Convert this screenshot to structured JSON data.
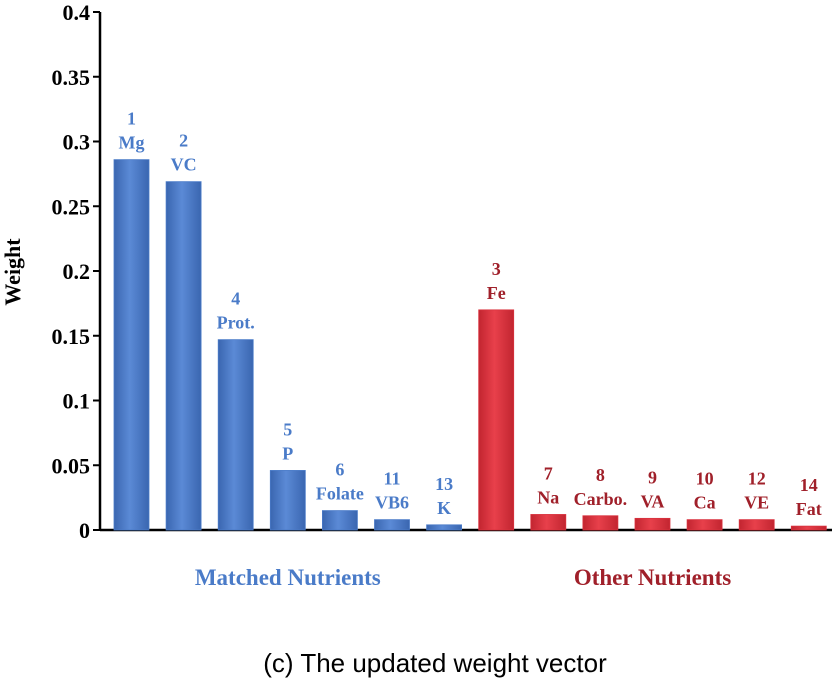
{
  "chart_data": {
    "type": "bar",
    "ylabel": "Weight",
    "ylim": [
      0,
      0.4
    ],
    "yticks": [
      "0",
      "0.05",
      "0.1",
      "0.15",
      "0.2",
      "0.25",
      "0.3",
      "0.35",
      "0.4"
    ],
    "grid": false,
    "caption": "(c) The updated weight vector",
    "groups": [
      {
        "name": "Matched Nutrients",
        "color": "#4a7bc8",
        "label_color": "#4a7bc8",
        "bars": [
          {
            "rank": "1",
            "label": "Mg",
            "value": 0.286
          },
          {
            "rank": "2",
            "label": "VC",
            "value": 0.269
          },
          {
            "rank": "4",
            "label": "Prot.",
            "value": 0.147
          },
          {
            "rank": "5",
            "label": "P",
            "value": 0.046
          },
          {
            "rank": "6",
            "label": "Folate",
            "value": 0.015
          },
          {
            "rank": "11",
            "label": "VB6",
            "value": 0.008
          },
          {
            "rank": "13",
            "label": "K",
            "value": 0.004
          }
        ]
      },
      {
        "name": "Other Nutrients",
        "color": "#d9323e",
        "label_color": "#a0202a",
        "bars": [
          {
            "rank": "3",
            "label": "Fe",
            "value": 0.17
          },
          {
            "rank": "7",
            "label": "Na",
            "value": 0.012
          },
          {
            "rank": "8",
            "label": "Carbo.",
            "value": 0.011
          },
          {
            "rank": "9",
            "label": "VA",
            "value": 0.009
          },
          {
            "rank": "10",
            "label": "Ca",
            "value": 0.008
          },
          {
            "rank": "12",
            "label": "VE",
            "value": 0.008
          },
          {
            "rank": "14",
            "label": "Fat",
            "value": 0.003
          }
        ]
      }
    ]
  }
}
